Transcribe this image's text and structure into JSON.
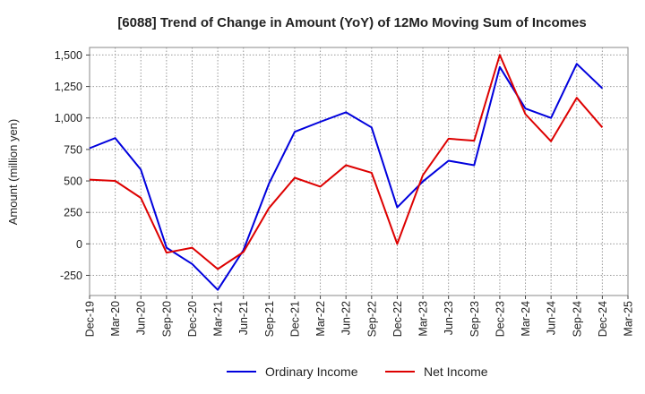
{
  "chart_data": {
    "type": "line",
    "title": "[6088]  Trend of Change in Amount (YoY) of 12Mo Moving Sum of Incomes",
    "ylabel": "Amount (million yen)",
    "xlabel": "",
    "categories": [
      "Dec-19",
      "Mar-20",
      "Jun-20",
      "Sep-20",
      "Dec-20",
      "Mar-21",
      "Jun-21",
      "Sep-21",
      "Dec-21",
      "Mar-22",
      "Jun-22",
      "Sep-22",
      "Dec-22",
      "Mar-23",
      "Jun-23",
      "Sep-23",
      "Dec-23",
      "Mar-24",
      "Jun-24",
      "Sep-24",
      "Dec-24",
      "Mar-25"
    ],
    "yticks": [
      "-250",
      "0",
      "250",
      "500",
      "750",
      "1,000",
      "1,250",
      "1,500"
    ],
    "ytick_values": [
      -250,
      0,
      250,
      500,
      750,
      1000,
      1250,
      1500
    ],
    "ylim": [
      -410,
      1560
    ],
    "grid": true,
    "legend_position": "bottom",
    "series": [
      {
        "name": "Ordinary Income",
        "color": "#0000dd",
        "values": [
          760,
          840,
          590,
          -30,
          -160,
          -365,
          -50,
          480,
          890,
          970,
          1045,
          925,
          290,
          495,
          660,
          625,
          1405,
          1075,
          1000,
          1430,
          1235,
          null
        ]
      },
      {
        "name": "Net Income",
        "color": "#dd0000",
        "values": [
          510,
          500,
          365,
          -70,
          -30,
          -200,
          -65,
          285,
          525,
          455,
          625,
          565,
          0,
          545,
          835,
          820,
          1500,
          1030,
          815,
          1160,
          925,
          null
        ]
      }
    ]
  }
}
